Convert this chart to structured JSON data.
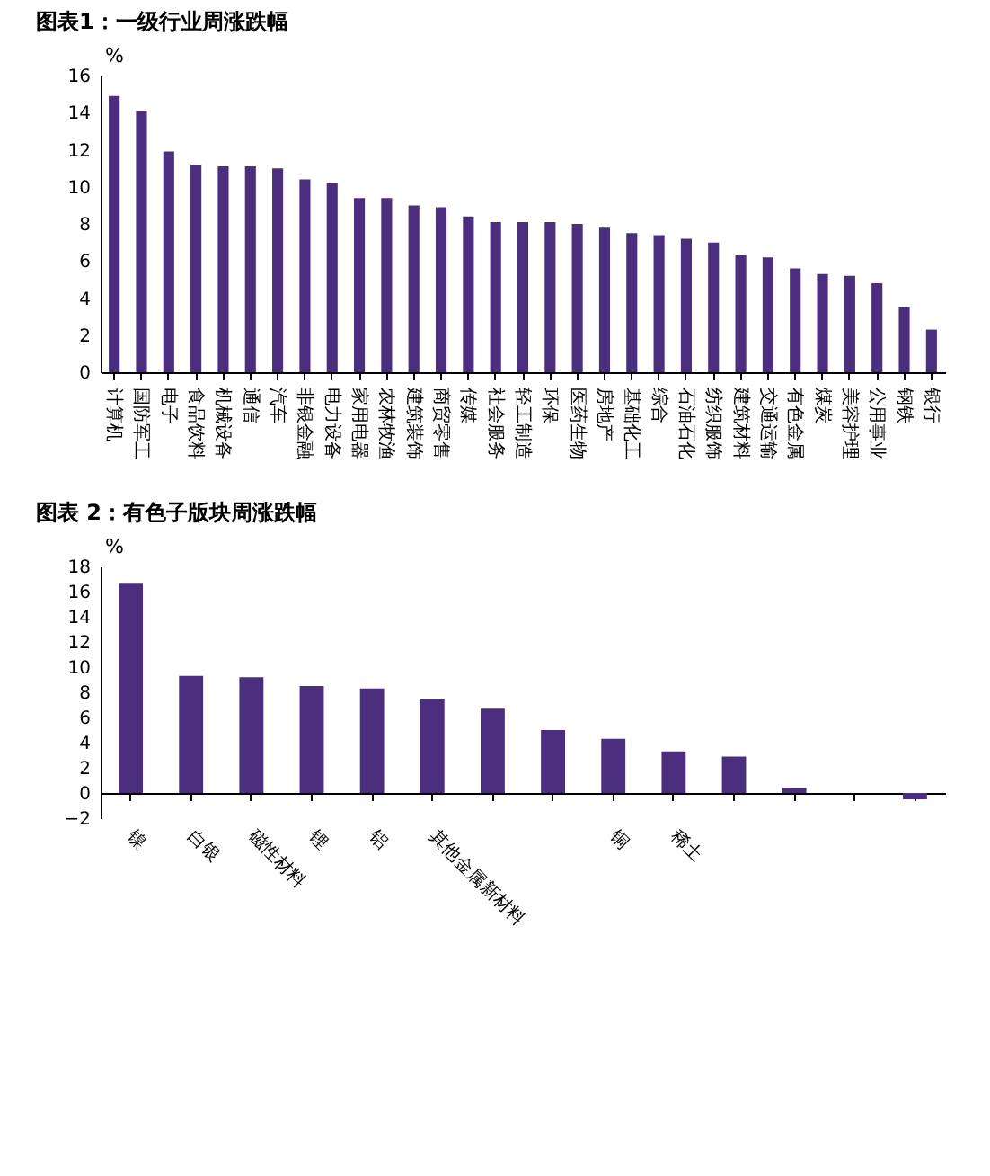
{
  "chart_data": [
    {
      "type": "bar",
      "title": "图表1：一级行业周涨跌幅",
      "ylabel": "%",
      "categories": [
        "计算机",
        "国防军工",
        "电子",
        "食品饮料",
        "机械设备",
        "通信",
        "汽车",
        "非银金融",
        "电力设备",
        "家用电器",
        "农林牧渔",
        "建筑装饰",
        "商贸零售",
        "传媒",
        "社会服务",
        "轻工制造",
        "环保",
        "医药生物",
        "房地产",
        "基础化工",
        "综合",
        "石油石化",
        "纺织服饰",
        "建筑材料",
        "交通运输",
        "有色金属",
        "煤炭",
        "美容护理",
        "公用事业",
        "钢铁",
        "银行"
      ],
      "values": [
        14.9,
        14.1,
        11.9,
        11.2,
        11.1,
        11.1,
        11.0,
        10.4,
        10.2,
        9.4,
        9.4,
        9.0,
        8.9,
        8.4,
        8.1,
        8.1,
        8.1,
        8.0,
        7.8,
        7.5,
        7.4,
        7.2,
        7.0,
        6.3,
        6.2,
        5.6,
        5.3,
        5.2,
        4.8,
        3.5,
        2.3
      ],
      "color": "#4b2e7d",
      "ylim": [
        0,
        16
      ],
      "yticks": [
        0,
        2,
        4,
        6,
        8,
        10,
        12,
        14,
        16
      ]
    },
    {
      "type": "bar",
      "title": "图表 2：有色子版块周涨跌幅",
      "ylabel": "%",
      "categories": [
        "镍",
        "白银",
        "磁性材料",
        "锂",
        "铝",
        "其他金属新材料",
        null,
        null,
        "铜",
        "稀土",
        null,
        null,
        null,
        null
      ],
      "values": [
        16.7,
        9.3,
        9.2,
        8.5,
        8.3,
        7.5,
        6.7,
        5.0,
        4.3,
        3.3,
        2.9,
        0.4,
        0,
        -0.5
      ],
      "color": "#4b2e7d",
      "ylim": [
        -2,
        18
      ],
      "yticks": [
        -2,
        0,
        2,
        4,
        6,
        8,
        10,
        12,
        14,
        16,
        18
      ]
    }
  ]
}
